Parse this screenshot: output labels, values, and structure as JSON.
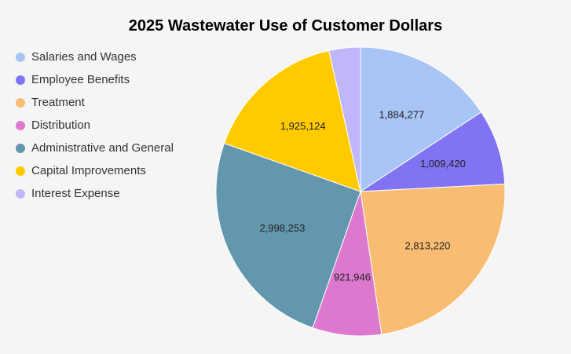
{
  "chart_data": {
    "type": "pie",
    "title": "2025 Wastewater Use of Customer Dollars",
    "legend_position": "left",
    "slices": [
      {
        "label": "Salaries and Wages",
        "value": 1884277,
        "display": "1,884,277",
        "color": "#a8c5f5"
      },
      {
        "label": "Employee Benefits",
        "value": 1009420,
        "display": "1,009,420",
        "color": "#8174f2"
      },
      {
        "label": "Treatment",
        "value": 2813220,
        "display": "2,813,220",
        "color": "#f8bd73"
      },
      {
        "label": "Distribution",
        "value": 921946,
        "display": "921,946",
        "color": "#dc79ce"
      },
      {
        "label": "Administrative and General",
        "value": 2998253,
        "display": "2,998,253",
        "color": "#6297ad"
      },
      {
        "label": "Capital Improvements",
        "value": 1925124,
        "display": "1,925,124",
        "color": "#ffcb00"
      },
      {
        "label": "Interest Expense",
        "value": 420000,
        "display": "",
        "color": "#c0b7fb"
      }
    ]
  }
}
